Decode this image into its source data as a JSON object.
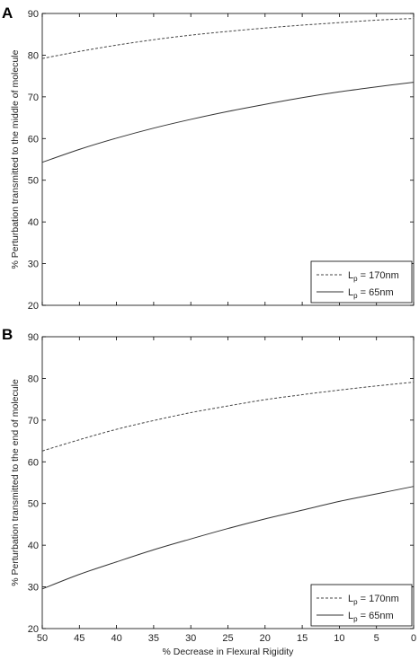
{
  "chart_data": [
    {
      "panel": "A",
      "type": "line",
      "xlabel": "",
      "ylabel": "% Perturbation transmitted to the middle of molecule",
      "xlim": [
        50,
        0
      ],
      "ylim": [
        20,
        90
      ],
      "xticks": [
        50,
        45,
        40,
        35,
        30,
        25,
        20,
        15,
        10,
        5,
        0
      ],
      "yticks": [
        20,
        30,
        40,
        50,
        60,
        70,
        80,
        90
      ],
      "x": [
        50,
        45,
        40,
        35,
        30,
        25,
        20,
        15,
        10,
        5,
        0
      ],
      "series": [
        {
          "legend_label": "L",
          "legend_sub": "p",
          "legend_rest": " = 170nm",
          "style": "dashed",
          "values": [
            79.2,
            80.9,
            82.4,
            83.7,
            84.8,
            85.7,
            86.5,
            87.2,
            87.8,
            88.4,
            88.8
          ]
        },
        {
          "legend_label": "L",
          "legend_sub": "p",
          "legend_rest": " = 65nm",
          "style": "solid",
          "values": [
            54.3,
            57.4,
            60.1,
            62.5,
            64.6,
            66.5,
            68.2,
            69.8,
            71.2,
            72.4,
            73.5
          ]
        }
      ],
      "legend_position": "lower-right"
    },
    {
      "panel": "B",
      "type": "line",
      "xlabel": "% Decrease in Flexural Rigidity",
      "ylabel": "% Perturbation transmitted to the end of molecule",
      "xlim": [
        50,
        0
      ],
      "ylim": [
        20,
        90
      ],
      "xticks": [
        50,
        45,
        40,
        35,
        30,
        25,
        20,
        15,
        10,
        5,
        0
      ],
      "yticks": [
        20,
        30,
        40,
        50,
        60,
        70,
        80,
        90
      ],
      "x": [
        50,
        45,
        40,
        35,
        30,
        25,
        20,
        15,
        10,
        5,
        0
      ],
      "series": [
        {
          "legend_label": "L",
          "legend_sub": "p",
          "legend_rest": " = 170nm",
          "style": "dashed",
          "values": [
            62.6,
            65.3,
            67.8,
            69.9,
            71.8,
            73.4,
            74.9,
            76.1,
            77.2,
            78.2,
            79.1
          ]
        },
        {
          "legend_label": "L",
          "legend_sub": "p",
          "legend_rest": " = 65nm",
          "style": "solid",
          "values": [
            29.5,
            33.0,
            36.0,
            38.9,
            41.5,
            44.0,
            46.3,
            48.4,
            50.5,
            52.3,
            54.1
          ]
        }
      ],
      "legend_position": "lower-right"
    }
  ],
  "colors": {
    "dashed_series": "#444444",
    "solid_series": "#333333",
    "axis": "#000000"
  }
}
